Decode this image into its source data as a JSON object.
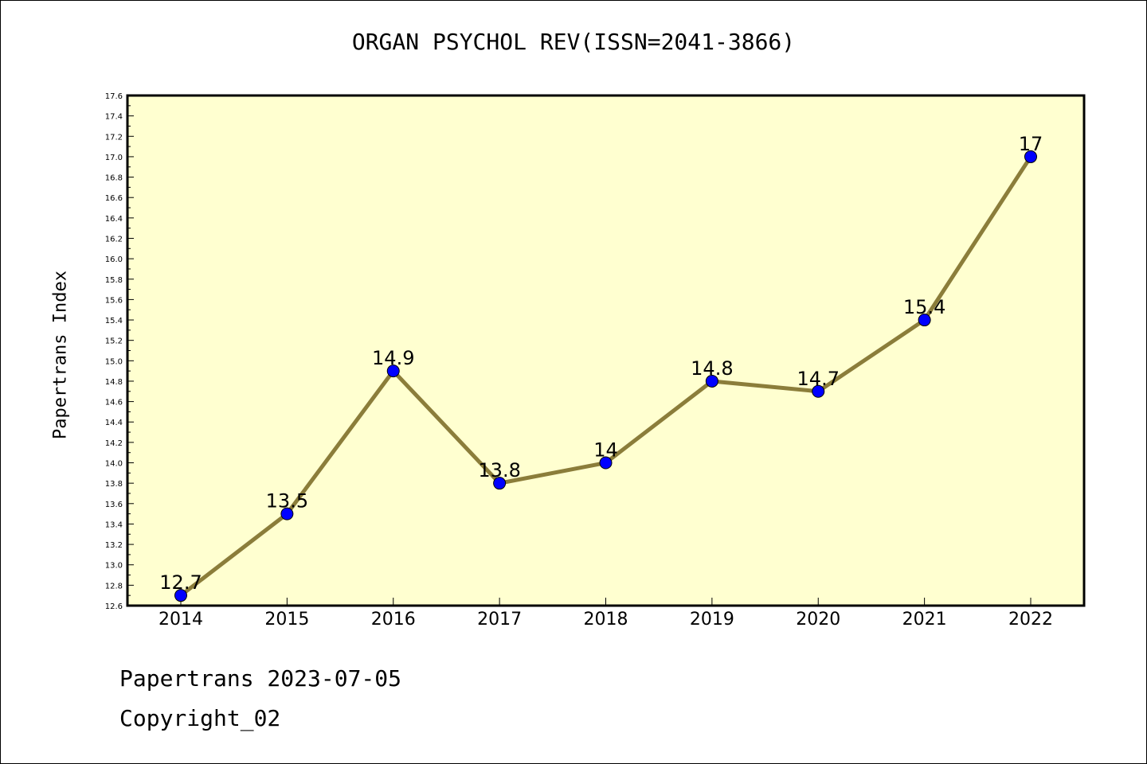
{
  "chart_data": {
    "type": "line",
    "title": "ORGAN PSYCHOL REV(ISSN=2041-3866)",
    "ylabel": "Papertrans Index",
    "xlabel": "",
    "x": [
      "2014",
      "2015",
      "2016",
      "2017",
      "2018",
      "2019",
      "2020",
      "2021",
      "2022"
    ],
    "series": [
      {
        "values": [
          12.7,
          13.5,
          14.9,
          13.8,
          14.0,
          14.8,
          14.7,
          15.4,
          17.0
        ],
        "data_labels": [
          "12.7",
          "13.5",
          "14.9",
          "13.8",
          "14",
          "14.8",
          "14.7",
          "15.4",
          "17"
        ]
      }
    ],
    "ylim": [
      12.6,
      17.6
    ],
    "y_ticks": [
      "12.6",
      "12.8",
      "13.0",
      "13.2",
      "13.4",
      "13.6",
      "13.8",
      "14.0",
      "14.2",
      "14.4",
      "14.6",
      "14.8",
      "15.0",
      "15.2",
      "15.4",
      "15.6",
      "15.8",
      "16.0",
      "16.2",
      "16.4",
      "16.6",
      "16.8",
      "17.0",
      "17.2",
      "17.4",
      "17.6"
    ],
    "grid": false,
    "colors": {
      "plot_background": "#ffffd0",
      "line": "#8b7d3a",
      "marker": "#0000ff"
    }
  },
  "footer": {
    "line1": "Papertrans 2023-07-05",
    "line2": "Copyright_02"
  }
}
